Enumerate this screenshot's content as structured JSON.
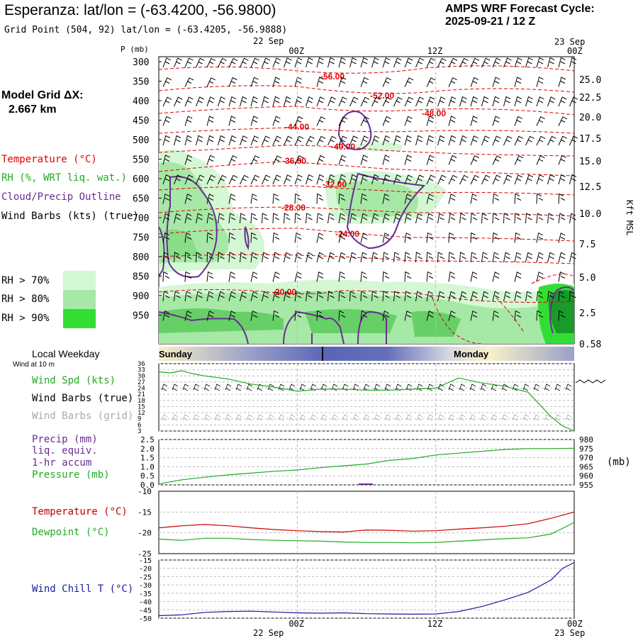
{
  "header": {
    "station": "Esperanza:",
    "latlon": "lat/lon = (-63.4200, -56.9800)",
    "grid_point": "Grid Point (504, 92) lat/lon = (-63.4205, -56.9888)",
    "cycle_label": "AMPS WRF Forecast Cycle:",
    "cycle_value": "2025-09-21 / 12  Z"
  },
  "model": {
    "grid_label": "Model Grid ΔX:",
    "grid_value": "2.667 km"
  },
  "legend": {
    "temperature": "Temperature (°C)",
    "rh": "RH (%, WRT liq. wat.)",
    "cloud": "Cloud/Precip Outline",
    "wind": "Wind Barbs (kts) (true)",
    "rh70": "RH > 70%",
    "rh80": "RH > 80%",
    "rh90": "RH > 90%",
    "local_weekday": "Local Weekday",
    "wind10m": "Wind at 10 m",
    "wind_spd": "Wind Spd (kts)",
    "wind_barbs_true": "Wind Barbs (true)",
    "wind_barbs_grid": "Wind Barbs (grid)",
    "precip1": "Precip (mm)",
    "precip2": "liq. equiv.",
    "precip3": "1-hr accum",
    "pressure": "Pressure (mb)",
    "pressure_unit": "(mb)",
    "temp2": "Temperature (°C)",
    "dewpoint": "Dewpoint (°C)",
    "windchill": "Wind Chill T (°C)"
  },
  "time_axis": {
    "top_date_left": "22 Sep",
    "top_date_right": "23 Sep",
    "ticks": [
      "00Z",
      "12Z",
      "00Z"
    ],
    "tick_hours": [
      12,
      24,
      36
    ],
    "bottom_date_left": "22 Sep",
    "bottom_date_right": "23 Sep",
    "weekday_left": "Sunday",
    "weekday_right": "Monday"
  },
  "colors": {
    "temperature": "#e00000",
    "rh": "#22aa22",
    "cloud": "#6a2c91",
    "pressure": "#22aa22",
    "windchill": "#1a1aa0",
    "rh70": "#d4f7d4",
    "rh80": "#a6e8a6",
    "rh90": "#33dd33"
  },
  "chart_data": [
    {
      "type": "contour",
      "name": "time-height cross section",
      "y_title": "P (mb)",
      "y_ticks": [
        300,
        350,
        400,
        450,
        500,
        550,
        600,
        650,
        700,
        750,
        800,
        850,
        900,
        950
      ],
      "right_axis_label": "Kft MSL",
      "right_ticks": [
        "25.0",
        "22.5",
        "20.0",
        "17.5",
        "15.0",
        "12.5",
        "10.0",
        "7.5",
        "5.0",
        "2.5",
        "0.58"
      ],
      "temp_contour_labels": [
        "-56.00",
        "-52.00",
        "-48.00",
        "-44.00",
        "-40.00",
        "-36.00",
        "-32.00",
        "-28.00",
        "-24.00",
        "-20.00"
      ]
    },
    {
      "type": "line",
      "name": "wind speed",
      "ylim": [
        3,
        36
      ],
      "y_ticks": [
        3,
        6,
        9,
        12,
        15,
        18,
        21,
        24,
        27,
        30,
        33,
        36
      ],
      "x_hours": [
        0,
        1,
        2,
        3,
        4,
        6,
        8,
        10,
        12,
        14,
        16,
        18,
        20,
        22,
        24,
        26,
        28,
        30,
        32,
        34,
        35,
        36
      ],
      "values": [
        32,
        31.5,
        32.5,
        31,
        30,
        28.5,
        26,
        24.5,
        22.5,
        23.5,
        23.5,
        23,
        23,
        23.5,
        24,
        29,
        26.5,
        25,
        22,
        10,
        5.5,
        3
      ]
    },
    {
      "type": "line",
      "name": "pressure",
      "y_ticks_left": [
        "0.0",
        "0.5",
        "1.0",
        "1.5",
        "2.0",
        "2.5"
      ],
      "y_ticks_right": [
        955,
        960,
        965,
        970,
        975,
        980
      ],
      "ylim": [
        955,
        980
      ],
      "x_hours": [
        0,
        2,
        4,
        6,
        8,
        10,
        12,
        14,
        16,
        18,
        20,
        22,
        24,
        26,
        28,
        30,
        32,
        34,
        36
      ],
      "values": [
        955.5,
        957.8,
        959.2,
        960.5,
        961.5,
        962.5,
        963.2,
        964.5,
        965.5,
        966.5,
        968.5,
        969.5,
        971.5,
        972.5,
        973.5,
        974.5,
        975,
        975,
        975.2
      ],
      "precip": [
        0,
        0,
        0,
        0,
        0,
        0,
        0,
        0,
        0,
        0,
        0,
        0,
        0,
        0,
        0,
        0,
        0,
        0,
        0
      ]
    },
    {
      "type": "line",
      "name": "temperature and dewpoint",
      "y_ticks": [
        -10,
        -15,
        -20,
        -25
      ],
      "ylim": [
        -25,
        -10
      ],
      "x_hours": [
        0,
        2,
        4,
        6,
        8,
        10,
        12,
        14,
        16,
        18,
        20,
        22,
        24,
        26,
        28,
        30,
        32,
        34,
        36
      ],
      "temperature": [
        -18.8,
        -18.3,
        -18.0,
        -18.3,
        -18.8,
        -19.2,
        -19.5,
        -19.7,
        -19.8,
        -19.3,
        -19.4,
        -19.6,
        -19.5,
        -19.1,
        -18.8,
        -18.4,
        -17.8,
        -16.5,
        -15.0
      ],
      "dewpoint": [
        -21.5,
        -21.8,
        -21.3,
        -21.3,
        -21.6,
        -21.8,
        -21.9,
        -22.0,
        -22.2,
        -22.3,
        -22.3,
        -22.4,
        -22.3,
        -22.0,
        -21.7,
        -21.4,
        -21.2,
        -20.3,
        -17.5
      ]
    },
    {
      "type": "line",
      "name": "wind chill",
      "y_ticks": [
        -15,
        -20,
        -25,
        -30,
        -35,
        -40,
        -45,
        -50
      ],
      "ylim": [
        -50,
        -15
      ],
      "x_hours": [
        0,
        2,
        4,
        6,
        8,
        10,
        12,
        14,
        16,
        18,
        20,
        22,
        24,
        26,
        28,
        30,
        32,
        34,
        35,
        36
      ],
      "values": [
        -48.5,
        -48.0,
        -46.5,
        -46.0,
        -45.8,
        -46.3,
        -46.8,
        -47.0,
        -46.8,
        -47.3,
        -47.5,
        -47.6,
        -47.5,
        -46.0,
        -43.0,
        -39.0,
        -34.5,
        -27.0,
        -20.0,
        -16.5
      ]
    }
  ]
}
